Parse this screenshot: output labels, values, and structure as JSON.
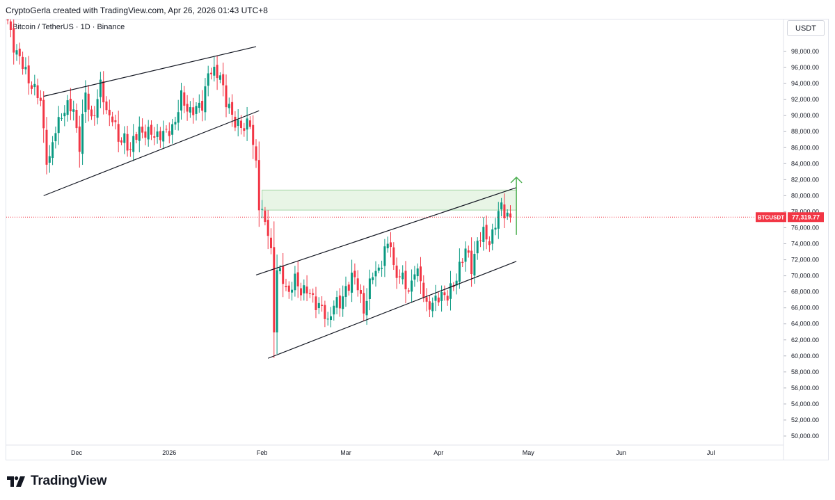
{
  "header": {
    "attribution": "CryptoGerla created with TradingView.com, Apr 26, 2026 01:43 UTC+8"
  },
  "symbol_title": "Bitcoin / TetherUS · 1D · Binance",
  "currency_label": "USDT",
  "brand": "TradingView",
  "colors": {
    "up": "#089981",
    "down": "#f23645",
    "trendline": "#131722",
    "zone_fill": "#e8f5e6",
    "zone_border": "#a5d6a7",
    "arrow": "#4caf50"
  },
  "chart_data": {
    "type": "candlestick",
    "title": "Bitcoin / TetherUS · 1D · Binance",
    "ylim": [
      49000,
      100000
    ],
    "y_ticks": [
      "50,000.00",
      "52,000.00",
      "54,000.00",
      "56,000.00",
      "58,000.00",
      "60,000.00",
      "62,000.00",
      "64,000.00",
      "66,000.00",
      "68,000.00",
      "70,000.00",
      "72,000.00",
      "74,000.00",
      "76,000.00",
      "78,000.00",
      "80,000.00",
      "82,000.00",
      "84,000.00",
      "86,000.00",
      "88,000.00",
      "90,000.00",
      "92,000.00",
      "94,000.00",
      "96,000.00",
      "98,000.00"
    ],
    "x_ticks": [
      "Dec",
      "2026",
      "Feb",
      "Mar",
      "Apr",
      "May",
      "Jun",
      "Jul"
    ],
    "last_price": {
      "symbol": "BTCUSDT",
      "value": "77,319.77",
      "y": 77320
    },
    "close_path": [
      [
        "2025-11-08",
        101500
      ],
      [
        "2025-11-10",
        99000
      ],
      [
        "2025-11-13",
        96000
      ],
      [
        "2025-11-16",
        94000
      ],
      [
        "2025-11-19",
        91500
      ],
      [
        "2025-11-21",
        85000
      ],
      [
        "2025-11-22",
        84500
      ],
      [
        "2025-11-24",
        88000
      ],
      [
        "2025-11-26",
        90500
      ],
      [
        "2025-11-28",
        91000
      ],
      [
        "2025-11-30",
        90500
      ],
      [
        "2025-12-02",
        86500
      ],
      [
        "2025-12-04",
        92500
      ],
      [
        "2025-12-06",
        89500
      ],
      [
        "2025-12-09",
        93500
      ],
      [
        "2025-12-11",
        90500
      ],
      [
        "2025-12-13",
        90000
      ],
      [
        "2025-12-15",
        86500
      ],
      [
        "2025-12-17",
        87500
      ],
      [
        "2025-12-19",
        85500
      ],
      [
        "2025-12-22",
        88500
      ],
      [
        "2025-12-25",
        87500
      ],
      [
        "2025-12-28",
        87800
      ],
      [
        "2025-12-31",
        87500
      ],
      [
        "2026-01-03",
        89500
      ],
      [
        "2026-01-05",
        92000
      ],
      [
        "2026-01-07",
        91000
      ],
      [
        "2026-01-10",
        90500
      ],
      [
        "2026-01-12",
        91500
      ],
      [
        "2026-01-14",
        95500
      ],
      [
        "2026-01-16",
        95000
      ],
      [
        "2026-01-18",
        95500
      ],
      [
        "2026-01-20",
        91500
      ],
      [
        "2026-01-22",
        89800
      ],
      [
        "2026-01-24",
        89200
      ],
      [
        "2026-01-26",
        88000
      ],
      [
        "2026-01-28",
        89400
      ],
      [
        "2026-01-30",
        84000
      ],
      [
        "2026-01-31",
        78500
      ],
      [
        "2026-02-01",
        77500
      ],
      [
        "2026-02-03",
        76000
      ],
      [
        "2026-02-04",
        73000
      ],
      [
        "2026-02-05",
        63000
      ],
      [
        "2026-02-06",
        70500
      ],
      [
        "2026-02-08",
        70000
      ],
      [
        "2026-02-10",
        67500
      ],
      [
        "2026-02-12",
        69500
      ],
      [
        "2026-02-14",
        68500
      ],
      [
        "2026-02-17",
        67500
      ],
      [
        "2026-02-20",
        66500
      ],
      [
        "2026-02-23",
        64000
      ],
      [
        "2026-02-25",
        67000
      ],
      [
        "2026-02-27",
        66000
      ],
      [
        "2026-03-01",
        68500
      ],
      [
        "2026-03-03",
        70000
      ],
      [
        "2026-03-05",
        68500
      ],
      [
        "2026-03-07",
        66000
      ],
      [
        "2026-03-10",
        70000
      ],
      [
        "2026-03-12",
        71000
      ],
      [
        "2026-03-14",
        73000
      ],
      [
        "2026-03-16",
        74000
      ],
      [
        "2026-03-17",
        71000
      ],
      [
        "2026-03-19",
        70000
      ],
      [
        "2026-03-22",
        68000
      ],
      [
        "2026-03-24",
        71000
      ],
      [
        "2026-03-26",
        69000
      ],
      [
        "2026-03-28",
        66500
      ],
      [
        "2026-03-31",
        66500
      ],
      [
        "2026-04-02",
        68000
      ],
      [
        "2026-04-04",
        67500
      ],
      [
        "2026-04-06",
        68500
      ],
      [
        "2026-04-08",
        71500
      ],
      [
        "2026-04-10",
        73000
      ],
      [
        "2026-04-12",
        71000
      ],
      [
        "2026-04-14",
        74500
      ],
      [
        "2026-04-16",
        75000
      ],
      [
        "2026-04-18",
        74500
      ],
      [
        "2026-04-20",
        76500
      ],
      [
        "2026-04-22",
        78500
      ],
      [
        "2026-04-24",
        77800
      ],
      [
        "2026-04-25",
        77320
      ]
    ],
    "trendlines": [
      {
        "name": "upper-channel-1",
        "from": [
          "2025-11-20",
          92400
        ],
        "to": [
          "2026-01-30",
          98600
        ]
      },
      {
        "name": "lower-channel-1",
        "from": [
          "2025-11-20",
          80000
        ],
        "to": [
          "2026-01-31",
          90600
        ]
      },
      {
        "name": "upper-channel-2",
        "from": [
          "2026-01-30",
          70100
        ],
        "to": [
          "2026-04-27",
          81000
        ]
      },
      {
        "name": "lower-channel-2",
        "from": [
          "2026-02-03",
          59700
        ],
        "to": [
          "2026-04-27",
          71800
        ]
      }
    ],
    "zone": {
      "from": "2026-02-01",
      "to": "2026-04-27",
      "y_from": 78200,
      "y_to": 80700
    },
    "arrow": {
      "date": "2026-04-27",
      "y_from": 75100,
      "y_to": 82300
    }
  }
}
